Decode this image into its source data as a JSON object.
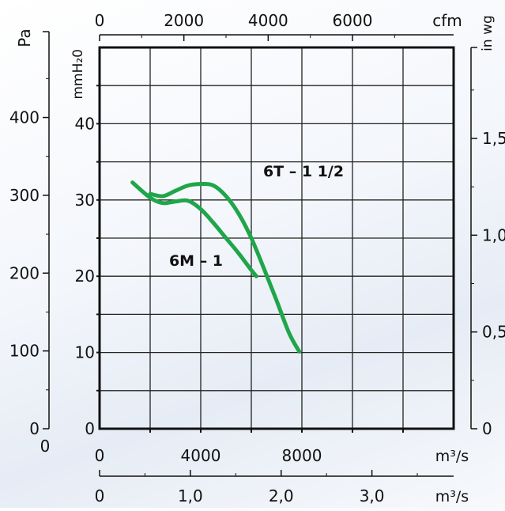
{
  "chart_data": {
    "type": "line",
    "axes": {
      "pa": {
        "label": "Pa",
        "ticks": [
          "0",
          "100",
          "200",
          "300",
          "400"
        ],
        "range": [
          0,
          490
        ]
      },
      "mmh2o": {
        "label": "mmH₂0",
        "ticks": [
          "0",
          "10",
          "20",
          "30",
          "40"
        ],
        "range": [
          0,
          50
        ]
      },
      "inwg": {
        "label": "in wg",
        "ticks": [
          "0",
          "0,5",
          "1,0",
          "1,5"
        ],
        "range": [
          0,
          1.97
        ]
      },
      "cfm": {
        "label": "cfm",
        "ticks": [
          "0",
          "2000",
          "4000",
          "6000"
        ],
        "range": [
          0,
          8400
        ]
      },
      "m3h": {
        "label": "m³/s",
        "ticks": [
          "0",
          "4000",
          "8000"
        ],
        "range": [
          0,
          14000
        ]
      },
      "m3s": {
        "label": "m³/s",
        "ticks": [
          "0",
          "1,0",
          "2,0",
          "3,0"
        ],
        "range": [
          0,
          3.9
        ]
      },
      "corner_label": "0"
    },
    "grid": true,
    "series": [
      {
        "name": "6M – 1",
        "x": [
          1300,
          2000,
          2500,
          3000,
          3500,
          4000,
          4500,
          5000,
          5500,
          6000,
          6200
        ],
        "y": [
          32.3,
          30.3,
          29.6,
          29.8,
          29.9,
          28.8,
          27.0,
          25.0,
          23.0,
          20.8,
          20.0
        ]
      },
      {
        "name": "6T – 1 1/2",
        "x": [
          2000,
          2500,
          3000,
          3500,
          4000,
          4500,
          5000,
          5500,
          6000,
          6500,
          7000,
          7500,
          7900
        ],
        "y": [
          30.8,
          30.5,
          31.2,
          31.9,
          32.1,
          31.9,
          30.5,
          28.2,
          25.0,
          21.0,
          16.8,
          12.5,
          10.1
        ]
      }
    ],
    "colors": {
      "curve": "#1fa64a",
      "grid": "#222222"
    }
  }
}
